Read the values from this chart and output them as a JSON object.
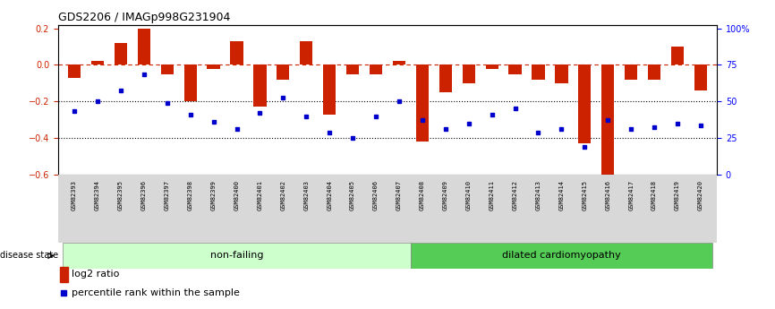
{
  "title": "GDS2206 / IMAGp998G231904",
  "samples": [
    "GSM82393",
    "GSM82394",
    "GSM82395",
    "GSM82396",
    "GSM82397",
    "GSM82398",
    "GSM82399",
    "GSM82400",
    "GSM82401",
    "GSM82402",
    "GSM82403",
    "GSM82404",
    "GSM82405",
    "GSM82406",
    "GSM82407",
    "GSM82408",
    "GSM82409",
    "GSM82410",
    "GSM82411",
    "GSM82412",
    "GSM82413",
    "GSM82414",
    "GSM82415",
    "GSM82416",
    "GSM82417",
    "GSM82418",
    "GSM82419",
    "GSM82420"
  ],
  "log2_ratio": [
    -0.07,
    0.02,
    0.12,
    0.2,
    -0.05,
    -0.2,
    -0.02,
    0.13,
    -0.23,
    -0.08,
    0.13,
    -0.27,
    -0.05,
    -0.05,
    0.02,
    -0.42,
    -0.15,
    -0.1,
    -0.02,
    -0.05,
    -0.08,
    -0.1,
    -0.43,
    -0.6,
    -0.08,
    -0.08,
    0.1,
    -0.14
  ],
  "percentile": [
    -0.25,
    -0.2,
    -0.14,
    -0.05,
    -0.21,
    -0.27,
    -0.31,
    -0.35,
    -0.26,
    -0.18,
    -0.28,
    -0.37,
    -0.4,
    -0.28,
    -0.2,
    -0.3,
    -0.35,
    -0.32,
    -0.27,
    -0.24,
    -0.37,
    -0.35,
    -0.45,
    -0.3,
    -0.35,
    -0.34,
    -0.32,
    -0.33
  ],
  "non_failing_count": 15,
  "bar_color": "#cc2200",
  "dot_color": "#0000cc",
  "nonfailing_color": "#ccffcc",
  "dcm_color": "#55cc55",
  "xtick_bg": "#d8d8d8",
  "ylim": [
    -0.6,
    0.22
  ],
  "yticks_left": [
    -0.6,
    -0.4,
    -0.2,
    0.0,
    0.2
  ],
  "ytick_right_labels": [
    "0",
    "25",
    "50",
    "75",
    "100%"
  ],
  "ytick_right_pos": [
    -0.6,
    -0.4,
    -0.2,
    0.0,
    0.2
  ]
}
